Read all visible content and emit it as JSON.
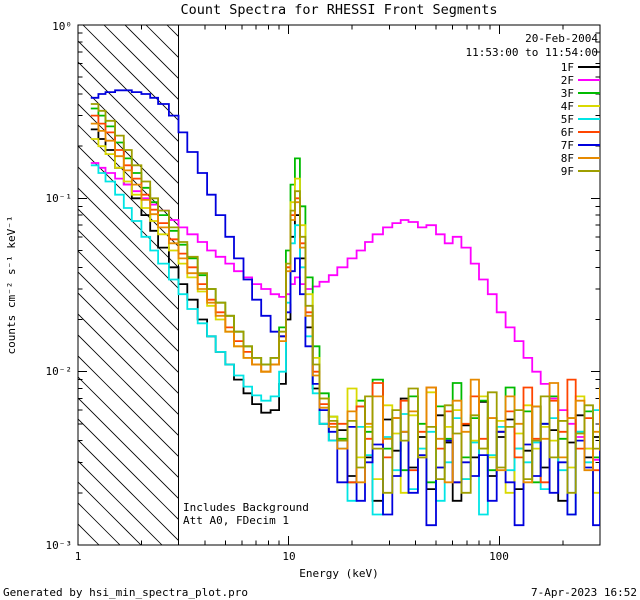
{
  "header": {
    "date": "20-Feb-2004",
    "time_range": "11:53:00 to 11:54:00"
  },
  "annotations": {
    "background": "Includes Background",
    "attenuator": "Att A0, FDecim 1"
  },
  "footer": {
    "generator": "Generated by hsi_min_spectra_plot.pro",
    "datetime": "7-Apr-2023 16:52"
  },
  "chart_data": {
    "type": "line",
    "title": "Count Spectra for RHESSI Front Segments",
    "xlabel": "Energy (keV)",
    "ylabel": "counts cm⁻² s⁻¹ keV⁻¹",
    "xscale": "log",
    "yscale": "log",
    "xlim": [
      1,
      300
    ],
    "ylim": [
      0.001,
      1
    ],
    "x_ticks": [
      1,
      10,
      100
    ],
    "y_ticks": [
      1,
      0.1,
      0.01,
      0.001
    ],
    "x_ticklabels": [
      "1",
      "10",
      "100"
    ],
    "y_ticklabels": [
      "10⁰",
      "10⁻¹",
      "10⁻²",
      "10⁻³"
    ],
    "legend_position": "top-right",
    "grid": false,
    "hatch_region": {
      "xmin": 1,
      "xmax": 3
    },
    "x": [
      1.15,
      1.25,
      1.35,
      1.5,
      1.65,
      1.8,
      2.0,
      2.2,
      2.4,
      2.7,
      3.0,
      3.3,
      3.7,
      4.1,
      4.5,
      5.0,
      5.5,
      6.1,
      6.7,
      7.4,
      8.2,
      9.0,
      9.7,
      10.2,
      10.7,
      11.3,
      12.0,
      13.0,
      14.0,
      15.5,
      17.0,
      19.0,
      21.0,
      23.0,
      25.0,
      28.0,
      31.0,
      34.0,
      37.0,
      41.0,
      45.0,
      50.0,
      55.0,
      60.0,
      66.0,
      73.0,
      80.0,
      88.0,
      97.0,
      107.0,
      118.0,
      130.0,
      143.0,
      157.0,
      173.0,
      190.0,
      210.0,
      230.0,
      253.0,
      278.0,
      300.0
    ],
    "series": [
      {
        "name": "1F",
        "color": "#000000",
        "values": [
          0.25,
          0.22,
          0.19,
          0.15,
          0.12,
          0.1,
          0.08,
          0.065,
          0.052,
          0.04,
          0.032,
          0.026,
          0.02,
          0.016,
          0.013,
          0.011,
          0.009,
          0.0075,
          0.0065,
          0.0058,
          0.006,
          0.0085,
          0.02,
          0.06,
          0.08,
          0.045,
          0.018,
          0.008,
          0.005,
          0.004,
          0.0046,
          0.0025,
          0.0063,
          0.0032,
          0.0018,
          0.0053,
          0.0035,
          0.007,
          0.0028,
          0.0042,
          0.0021,
          0.0056,
          0.0039,
          0.0018,
          0.0049,
          0.0032,
          0.0067,
          0.0025,
          0.0042,
          0.0053,
          0.0021,
          0.0035,
          0.0063,
          0.0028,
          0.0046,
          0.0018,
          0.0039,
          0.0056,
          0.0032,
          0.0042,
          0.0035
        ]
      },
      {
        "name": "2F",
        "color": "#FF00FF",
        "values": [
          0.16,
          0.15,
          0.14,
          0.13,
          0.12,
          0.11,
          0.1,
          0.092,
          0.085,
          0.075,
          0.068,
          0.062,
          0.056,
          0.05,
          0.046,
          0.042,
          0.038,
          0.035,
          0.032,
          0.03,
          0.028,
          0.027,
          0.028,
          0.032,
          0.035,
          0.032,
          0.03,
          0.031,
          0.033,
          0.036,
          0.04,
          0.045,
          0.05,
          0.056,
          0.062,
          0.068,
          0.072,
          0.075,
          0.073,
          0.068,
          0.07,
          0.062,
          0.055,
          0.06,
          0.052,
          0.042,
          0.034,
          0.028,
          0.022,
          0.018,
          0.015,
          0.012,
          0.01,
          0.0085,
          0.007,
          0.006,
          0.005,
          0.0042,
          0.0036,
          0.0031,
          0.0028
        ]
      },
      {
        "name": "3F",
        "color": "#00BB00",
        "values": [
          0.33,
          0.3,
          0.26,
          0.21,
          0.17,
          0.14,
          0.115,
          0.095,
          0.08,
          0.065,
          0.054,
          0.045,
          0.036,
          0.03,
          0.025,
          0.021,
          0.017,
          0.014,
          0.012,
          0.011,
          0.012,
          0.018,
          0.05,
          0.12,
          0.17,
          0.09,
          0.035,
          0.014,
          0.0075,
          0.0055,
          0.0041,
          0.0023,
          0.0068,
          0.0045,
          0.009,
          0.0036,
          0.0054,
          0.0027,
          0.0072,
          0.005,
          0.0023,
          0.0063,
          0.0041,
          0.0086,
          0.0032,
          0.0054,
          0.0068,
          0.0027,
          0.0045,
          0.0081,
          0.0036,
          0.0059,
          0.0023,
          0.005,
          0.0072,
          0.0041,
          0.0054,
          0.0045,
          0.0059,
          0.0032,
          0.0081
        ]
      },
      {
        "name": "4F",
        "color": "#D9D900",
        "values": [
          0.22,
          0.2,
          0.18,
          0.15,
          0.125,
          0.105,
          0.088,
          0.074,
          0.062,
          0.05,
          0.042,
          0.035,
          0.029,
          0.024,
          0.02,
          0.017,
          0.014,
          0.012,
          0.011,
          0.01,
          0.011,
          0.016,
          0.04,
          0.095,
          0.13,
          0.07,
          0.028,
          0.012,
          0.007,
          0.0055,
          0.004,
          0.008,
          0.0032,
          0.0048,
          0.0024,
          0.0064,
          0.0044,
          0.002,
          0.0056,
          0.0036,
          0.0076,
          0.0028,
          0.0048,
          0.006,
          0.0024,
          0.004,
          0.0072,
          0.0032,
          0.0052,
          0.002,
          0.0044,
          0.0064,
          0.0036,
          0.0048,
          0.004,
          0.0052,
          0.0028,
          0.0072,
          0.0036,
          0.002,
          0.006
        ]
      },
      {
        "name": "5F",
        "color": "#00E5E5",
        "values": [
          0.155,
          0.14,
          0.125,
          0.105,
          0.088,
          0.074,
          0.06,
          0.05,
          0.042,
          0.034,
          0.028,
          0.023,
          0.019,
          0.016,
          0.013,
          0.011,
          0.0095,
          0.0082,
          0.0073,
          0.0068,
          0.0072,
          0.01,
          0.025,
          0.055,
          0.07,
          0.04,
          0.016,
          0.0075,
          0.005,
          0.004,
          0.0036,
          0.0018,
          0.0048,
          0.0033,
          0.0015,
          0.0042,
          0.0027,
          0.0057,
          0.0021,
          0.0036,
          0.0045,
          0.0018,
          0.003,
          0.0054,
          0.0024,
          0.0039,
          0.0015,
          0.0033,
          0.0048,
          0.0027,
          0.0036,
          0.003,
          0.0039,
          0.0021,
          0.0054,
          0.0027,
          0.0015,
          0.0045,
          0.003,
          0.006,
          0.0024
        ]
      },
      {
        "name": "6F",
        "color": "#FF4500",
        "values": [
          0.3,
          0.27,
          0.24,
          0.19,
          0.155,
          0.13,
          0.105,
          0.086,
          0.072,
          0.058,
          0.048,
          0.04,
          0.032,
          0.026,
          0.022,
          0.018,
          0.015,
          0.013,
          0.011,
          0.01,
          0.011,
          0.016,
          0.04,
          0.08,
          0.1,
          0.055,
          0.022,
          0.01,
          0.0065,
          0.005,
          0.005,
          0.0023,
          0.0063,
          0.0041,
          0.0086,
          0.0032,
          0.0054,
          0.0068,
          0.0027,
          0.0045,
          0.0081,
          0.0036,
          0.0059,
          0.0023,
          0.005,
          0.0072,
          0.0041,
          0.0054,
          0.0045,
          0.0059,
          0.0032,
          0.0081,
          0.0041,
          0.0023,
          0.0068,
          0.0045,
          0.009,
          0.0036,
          0.0054,
          0.0027,
          0.0072
        ]
      },
      {
        "name": "7F",
        "color": "#0000DD",
        "values": [
          0.38,
          0.4,
          0.41,
          0.42,
          0.42,
          0.41,
          0.4,
          0.38,
          0.35,
          0.3,
          0.24,
          0.185,
          0.14,
          0.105,
          0.08,
          0.06,
          0.045,
          0.034,
          0.026,
          0.021,
          0.017,
          0.016,
          0.022,
          0.038,
          0.045,
          0.028,
          0.014,
          0.0085,
          0.006,
          0.0045,
          0.0023,
          0.0048,
          0.0018,
          0.003,
          0.0038,
          0.0015,
          0.0025,
          0.0045,
          0.002,
          0.0033,
          0.0013,
          0.0028,
          0.004,
          0.0023,
          0.003,
          0.0025,
          0.0033,
          0.0018,
          0.0045,
          0.0023,
          0.0013,
          0.0038,
          0.0025,
          0.005,
          0.002,
          0.003,
          0.0015,
          0.004,
          0.0028,
          0.0013,
          0.0035
        ]
      },
      {
        "name": "8F",
        "color": "#E68A00",
        "values": [
          0.27,
          0.245,
          0.215,
          0.175,
          0.145,
          0.12,
          0.098,
          0.081,
          0.068,
          0.055,
          0.045,
          0.037,
          0.03,
          0.025,
          0.021,
          0.017,
          0.014,
          0.012,
          0.011,
          0.01,
          0.011,
          0.015,
          0.038,
          0.075,
          0.095,
          0.052,
          0.021,
          0.0095,
          0.0062,
          0.0048,
          0.0036,
          0.0059,
          0.0023,
          0.005,
          0.0072,
          0.0041,
          0.0054,
          0.0045,
          0.0059,
          0.0032,
          0.0081,
          0.0041,
          0.0023,
          0.0068,
          0.0045,
          0.009,
          0.0036,
          0.0054,
          0.0027,
          0.0072,
          0.005,
          0.0023,
          0.0063,
          0.0041,
          0.0086,
          0.0032,
          0.0054,
          0.0068,
          0.0027,
          0.0045,
          0.0081
        ]
      },
      {
        "name": "9F",
        "color": "#9E9E00",
        "values": [
          0.35,
          0.32,
          0.28,
          0.23,
          0.19,
          0.155,
          0.125,
          0.1,
          0.085,
          0.068,
          0.056,
          0.046,
          0.037,
          0.03,
          0.025,
          0.021,
          0.017,
          0.014,
          0.012,
          0.011,
          0.012,
          0.017,
          0.042,
          0.085,
          0.11,
          0.06,
          0.024,
          0.011,
          0.007,
          0.0052,
          0.004,
          0.0052,
          0.0028,
          0.0072,
          0.0036,
          0.002,
          0.006,
          0.004,
          0.008,
          0.0032,
          0.0048,
          0.0024,
          0.0064,
          0.0044,
          0.002,
          0.0056,
          0.0036,
          0.0076,
          0.0028,
          0.0048,
          0.006,
          0.0024,
          0.004,
          0.0072,
          0.0032,
          0.0052,
          0.002,
          0.0044,
          0.0064,
          0.0036,
          0.0048
        ]
      }
    ]
  }
}
